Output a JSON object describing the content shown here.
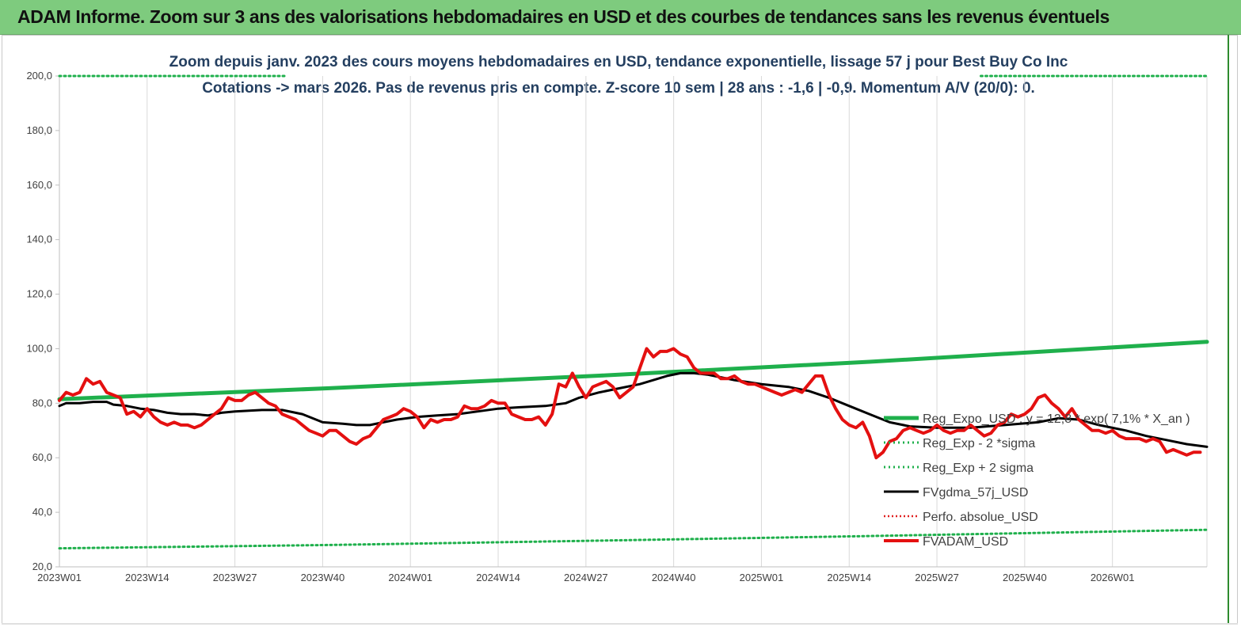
{
  "header": {
    "title": "ADAM Informe. Zoom sur 3 ans des valorisations hebdomadaires en USD et des courbes de tendances sans les revenus éventuels"
  },
  "colors": {
    "banner": "#7ecb7e",
    "trend": "#1fb04c",
    "sigma": "#1fb04c",
    "gdma": "#000000",
    "perfo": "#e02020",
    "price": "#e41010",
    "title_text": "#243f60"
  },
  "chart_data": {
    "type": "line",
    "title": "Zoom depuis janv. 2023 des cours moyens hebdomadaires en USD, tendance exponentielle, lissage 57 j pour Best Buy Co Inc",
    "subtitle": "Cotations -> mars 2026. Pas de revenus pris en compte. Z-score 10 sem  | 28 ans : -1,6 | -0,9. Momentum A/V (20/0): 0.",
    "xlabel": "",
    "ylabel": "",
    "ylim": [
      20,
      200
    ],
    "yticks": [
      "20,0",
      "40,0",
      "60,0",
      "80,0",
      "100,0",
      "120,0",
      "140,0",
      "160,0",
      "180,0",
      "200,0"
    ],
    "xticks": [
      "2023W01",
      "2023W14",
      "2023W27",
      "2023W40",
      "2024W01",
      "2024W14",
      "2024W27",
      "2024W40",
      "2025W01",
      "2025W14",
      "2025W27",
      "2025W40",
      "2026W01"
    ],
    "x_range_weeks": [
      0,
      170
    ],
    "grid": "vertical",
    "legend_position": "right",
    "legend": [
      "Reg_Expo_USD : y = 12,8 * exp( 7,1% *  X_an )",
      "Reg_Exp - 2 *sigma",
      "Reg_Exp + 2 sigma",
      "FVgdma_57j_USD",
      "Perfo. absolue_USD",
      "FVADAM_USD"
    ],
    "series": [
      {
        "name": "Reg_Expo_USD : y = 12,8 * exp( 7,1% *  X_an )",
        "style": "solid-thick",
        "points": [
          [
            0,
            81.5
          ],
          [
            40,
            85.5
          ],
          [
            80,
            90.1
          ],
          [
            120,
            95.2
          ],
          [
            170,
            102.5
          ]
        ]
      },
      {
        "name": "Reg_Exp - 2 *sigma",
        "style": "dotted",
        "points": [
          [
            0,
            26.8
          ],
          [
            40,
            28.0
          ],
          [
            80,
            29.6
          ],
          [
            120,
            31.3
          ],
          [
            170,
            33.6
          ]
        ]
      },
      {
        "name": "Reg_Exp + 2 sigma",
        "style": "dotted",
        "points": [
          [
            0,
            200.0
          ],
          [
            170,
            200.0
          ]
        ]
      },
      {
        "name": "FVgdma_57j_USD",
        "style": "solid",
        "points": [
          [
            0,
            79
          ],
          [
            1,
            80
          ],
          [
            3,
            80
          ],
          [
            5,
            80.5
          ],
          [
            7,
            80.5
          ],
          [
            8,
            79.5
          ],
          [
            10,
            79
          ],
          [
            12,
            78
          ],
          [
            14,
            77.5
          ],
          [
            16,
            76.5
          ],
          [
            18,
            76
          ],
          [
            20,
            76
          ],
          [
            22,
            75.5
          ],
          [
            24,
            76.5
          ],
          [
            26,
            77
          ],
          [
            30,
            77.5
          ],
          [
            33,
            77.5
          ],
          [
            36,
            76
          ],
          [
            39,
            73
          ],
          [
            42,
            72.5
          ],
          [
            44,
            72
          ],
          [
            46,
            72
          ],
          [
            48,
            73
          ],
          [
            50,
            74
          ],
          [
            53,
            75
          ],
          [
            56,
            75.5
          ],
          [
            59,
            76
          ],
          [
            62,
            77
          ],
          [
            65,
            78
          ],
          [
            68,
            78.5
          ],
          [
            72,
            79
          ],
          [
            75,
            80
          ],
          [
            77,
            82
          ],
          [
            80,
            84
          ],
          [
            83,
            85.5
          ],
          [
            86,
            87
          ],
          [
            88,
            88.5
          ],
          [
            90,
            90
          ],
          [
            92,
            91
          ],
          [
            94,
            91
          ],
          [
            96,
            90.5
          ],
          [
            98,
            89.5
          ],
          [
            100,
            88.5
          ],
          [
            104,
            87
          ],
          [
            108,
            86
          ],
          [
            111,
            84.5
          ],
          [
            114,
            82
          ],
          [
            117,
            79
          ],
          [
            120,
            76
          ],
          [
            123,
            73
          ],
          [
            126,
            71.5
          ],
          [
            130,
            71
          ],
          [
            135,
            71
          ],
          [
            140,
            72
          ],
          [
            145,
            73
          ],
          [
            148,
            74.5
          ],
          [
            151,
            74
          ],
          [
            154,
            72
          ],
          [
            158,
            70
          ],
          [
            161,
            68
          ],
          [
            164,
            66.5
          ],
          [
            167,
            65
          ],
          [
            170,
            64
          ]
        ]
      },
      {
        "name": "Perfo. absolue_USD",
        "style": "dotted-red",
        "points": []
      },
      {
        "name": "FVADAM_USD",
        "style": "solid-thick-red",
        "points": [
          [
            0,
            81
          ],
          [
            1,
            84
          ],
          [
            2,
            83
          ],
          [
            3,
            84
          ],
          [
            4,
            89
          ],
          [
            5,
            87
          ],
          [
            6,
            88
          ],
          [
            7,
            84
          ],
          [
            8,
            83
          ],
          [
            9,
            82
          ],
          [
            10,
            76
          ],
          [
            11,
            77
          ],
          [
            12,
            75
          ],
          [
            13,
            78
          ],
          [
            14,
            75
          ],
          [
            15,
            73
          ],
          [
            16,
            72
          ],
          [
            17,
            73
          ],
          [
            18,
            72
          ],
          [
            19,
            72
          ],
          [
            20,
            71
          ],
          [
            21,
            72
          ],
          [
            22,
            74
          ],
          [
            23,
            76
          ],
          [
            24,
            78
          ],
          [
            25,
            82
          ],
          [
            26,
            81
          ],
          [
            27,
            81
          ],
          [
            28,
            83
          ],
          [
            29,
            84
          ],
          [
            30,
            82
          ],
          [
            31,
            80
          ],
          [
            32,
            79
          ],
          [
            33,
            76
          ],
          [
            34,
            75
          ],
          [
            35,
            74
          ],
          [
            36,
            72
          ],
          [
            37,
            70
          ],
          [
            38,
            69
          ],
          [
            39,
            68
          ],
          [
            40,
            70
          ],
          [
            41,
            70
          ],
          [
            42,
            68
          ],
          [
            43,
            66
          ],
          [
            44,
            65
          ],
          [
            45,
            67
          ],
          [
            46,
            68
          ],
          [
            47,
            71
          ],
          [
            48,
            74
          ],
          [
            49,
            75
          ],
          [
            50,
            76
          ],
          [
            51,
            78
          ],
          [
            52,
            77
          ],
          [
            53,
            75
          ],
          [
            54,
            71
          ],
          [
            55,
            74
          ],
          [
            56,
            73
          ],
          [
            57,
            74
          ],
          [
            58,
            74
          ],
          [
            59,
            75
          ],
          [
            60,
            79
          ],
          [
            61,
            78
          ],
          [
            62,
            78
          ],
          [
            63,
            79
          ],
          [
            64,
            81
          ],
          [
            65,
            80
          ],
          [
            66,
            80
          ],
          [
            67,
            76
          ],
          [
            68,
            75
          ],
          [
            69,
            74
          ],
          [
            70,
            74
          ],
          [
            71,
            75
          ],
          [
            72,
            72
          ],
          [
            73,
            76
          ],
          [
            74,
            87
          ],
          [
            75,
            86
          ],
          [
            76,
            91
          ],
          [
            77,
            86
          ],
          [
            78,
            82
          ],
          [
            79,
            86
          ],
          [
            80,
            87
          ],
          [
            81,
            88
          ],
          [
            82,
            86
          ],
          [
            83,
            82
          ],
          [
            84,
            84
          ],
          [
            85,
            86
          ],
          [
            86,
            93
          ],
          [
            87,
            100
          ],
          [
            88,
            97
          ],
          [
            89,
            99
          ],
          [
            90,
            99
          ],
          [
            91,
            100
          ],
          [
            92,
            98
          ],
          [
            93,
            97
          ],
          [
            94,
            93
          ],
          [
            95,
            91
          ],
          [
            96,
            91
          ],
          [
            97,
            91
          ],
          [
            98,
            89
          ],
          [
            99,
            89
          ],
          [
            100,
            90
          ],
          [
            101,
            88
          ],
          [
            102,
            87
          ],
          [
            103,
            87
          ],
          [
            104,
            86
          ],
          [
            105,
            85
          ],
          [
            106,
            84
          ],
          [
            107,
            83
          ],
          [
            108,
            84
          ],
          [
            109,
            85
          ],
          [
            110,
            84
          ],
          [
            111,
            87
          ],
          [
            112,
            90
          ],
          [
            113,
            90
          ],
          [
            114,
            83
          ],
          [
            115,
            78
          ],
          [
            116,
            74
          ],
          [
            117,
            72
          ],
          [
            118,
            71
          ],
          [
            119,
            73
          ],
          [
            120,
            68
          ],
          [
            121,
            60
          ],
          [
            122,
            62
          ],
          [
            123,
            66
          ],
          [
            124,
            67
          ],
          [
            125,
            70
          ],
          [
            126,
            71
          ],
          [
            127,
            70
          ],
          [
            128,
            69
          ],
          [
            129,
            70
          ],
          [
            130,
            72
          ],
          [
            131,
            70
          ],
          [
            132,
            69
          ],
          [
            133,
            70
          ],
          [
            134,
            70
          ],
          [
            135,
            72
          ],
          [
            136,
            70
          ],
          [
            137,
            68
          ],
          [
            138,
            69
          ],
          [
            139,
            72
          ],
          [
            140,
            73
          ],
          [
            141,
            76
          ],
          [
            142,
            75
          ],
          [
            143,
            76
          ],
          [
            144,
            78
          ],
          [
            145,
            82
          ],
          [
            146,
            83
          ],
          [
            147,
            80
          ],
          [
            148,
            78
          ],
          [
            149,
            75
          ],
          [
            150,
            78
          ],
          [
            151,
            74
          ],
          [
            152,
            72
          ],
          [
            153,
            70
          ],
          [
            154,
            70
          ],
          [
            155,
            69
          ],
          [
            156,
            70
          ],
          [
            157,
            68
          ],
          [
            158,
            67
          ],
          [
            159,
            67
          ],
          [
            160,
            67
          ],
          [
            161,
            66
          ],
          [
            162,
            67
          ],
          [
            163,
            66
          ],
          [
            164,
            62
          ],
          [
            165,
            63
          ],
          [
            166,
            62
          ],
          [
            167,
            61
          ],
          [
            168,
            62
          ],
          [
            169,
            62
          ]
        ]
      }
    ]
  }
}
